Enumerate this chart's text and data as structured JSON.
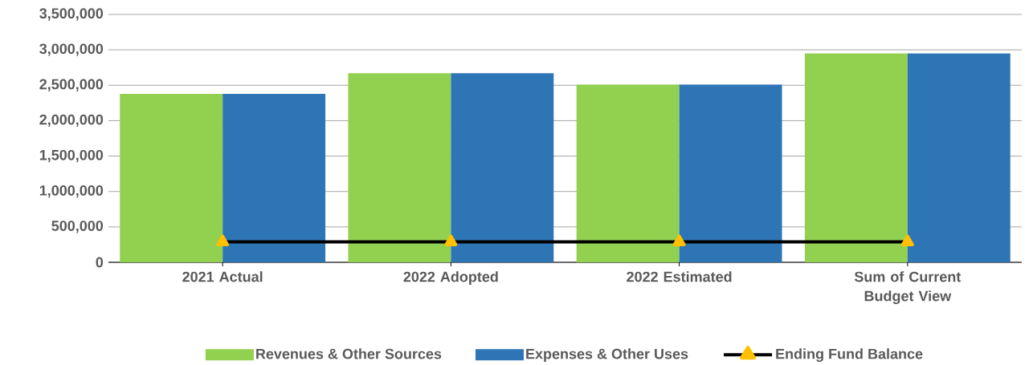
{
  "chart_data": {
    "type": "bar",
    "categories": [
      "2021 Actual",
      "2022 Adopted",
      "2022 Estimated",
      "Sum of Current Budget View"
    ],
    "series": [
      {
        "name": "Revenues & Other Sources",
        "color": "#92d050",
        "values": [
          2380000,
          2670000,
          2510000,
          2950000
        ]
      },
      {
        "name": "Expenses & Other Uses",
        "color": "#2e75b6",
        "values": [
          2380000,
          2670000,
          2510000,
          2950000
        ]
      },
      {
        "name": "Ending Fund Balance",
        "type": "line",
        "color": "#000000",
        "marker": "triangle",
        "values": [
          290000,
          290000,
          290000,
          290000
        ]
      }
    ],
    "ylim": [
      0,
      3500000
    ],
    "yticks": [
      0,
      {
        "value": 500000,
        "label": "500,000"
      },
      {
        "value": 1000000,
        "label": "1,000,000"
      },
      {
        "value": 1500000,
        "label": "1,500,000"
      },
      {
        "value": 2000000,
        "label": "2,000,000"
      },
      {
        "value": 2500000,
        "label": "2,500,000"
      },
      {
        "value": 3000000,
        "label": "3,000,000"
      },
      {
        "value": 3500000,
        "label": "3,500,000"
      }
    ],
    "grid": "y",
    "legend": "bottom"
  }
}
